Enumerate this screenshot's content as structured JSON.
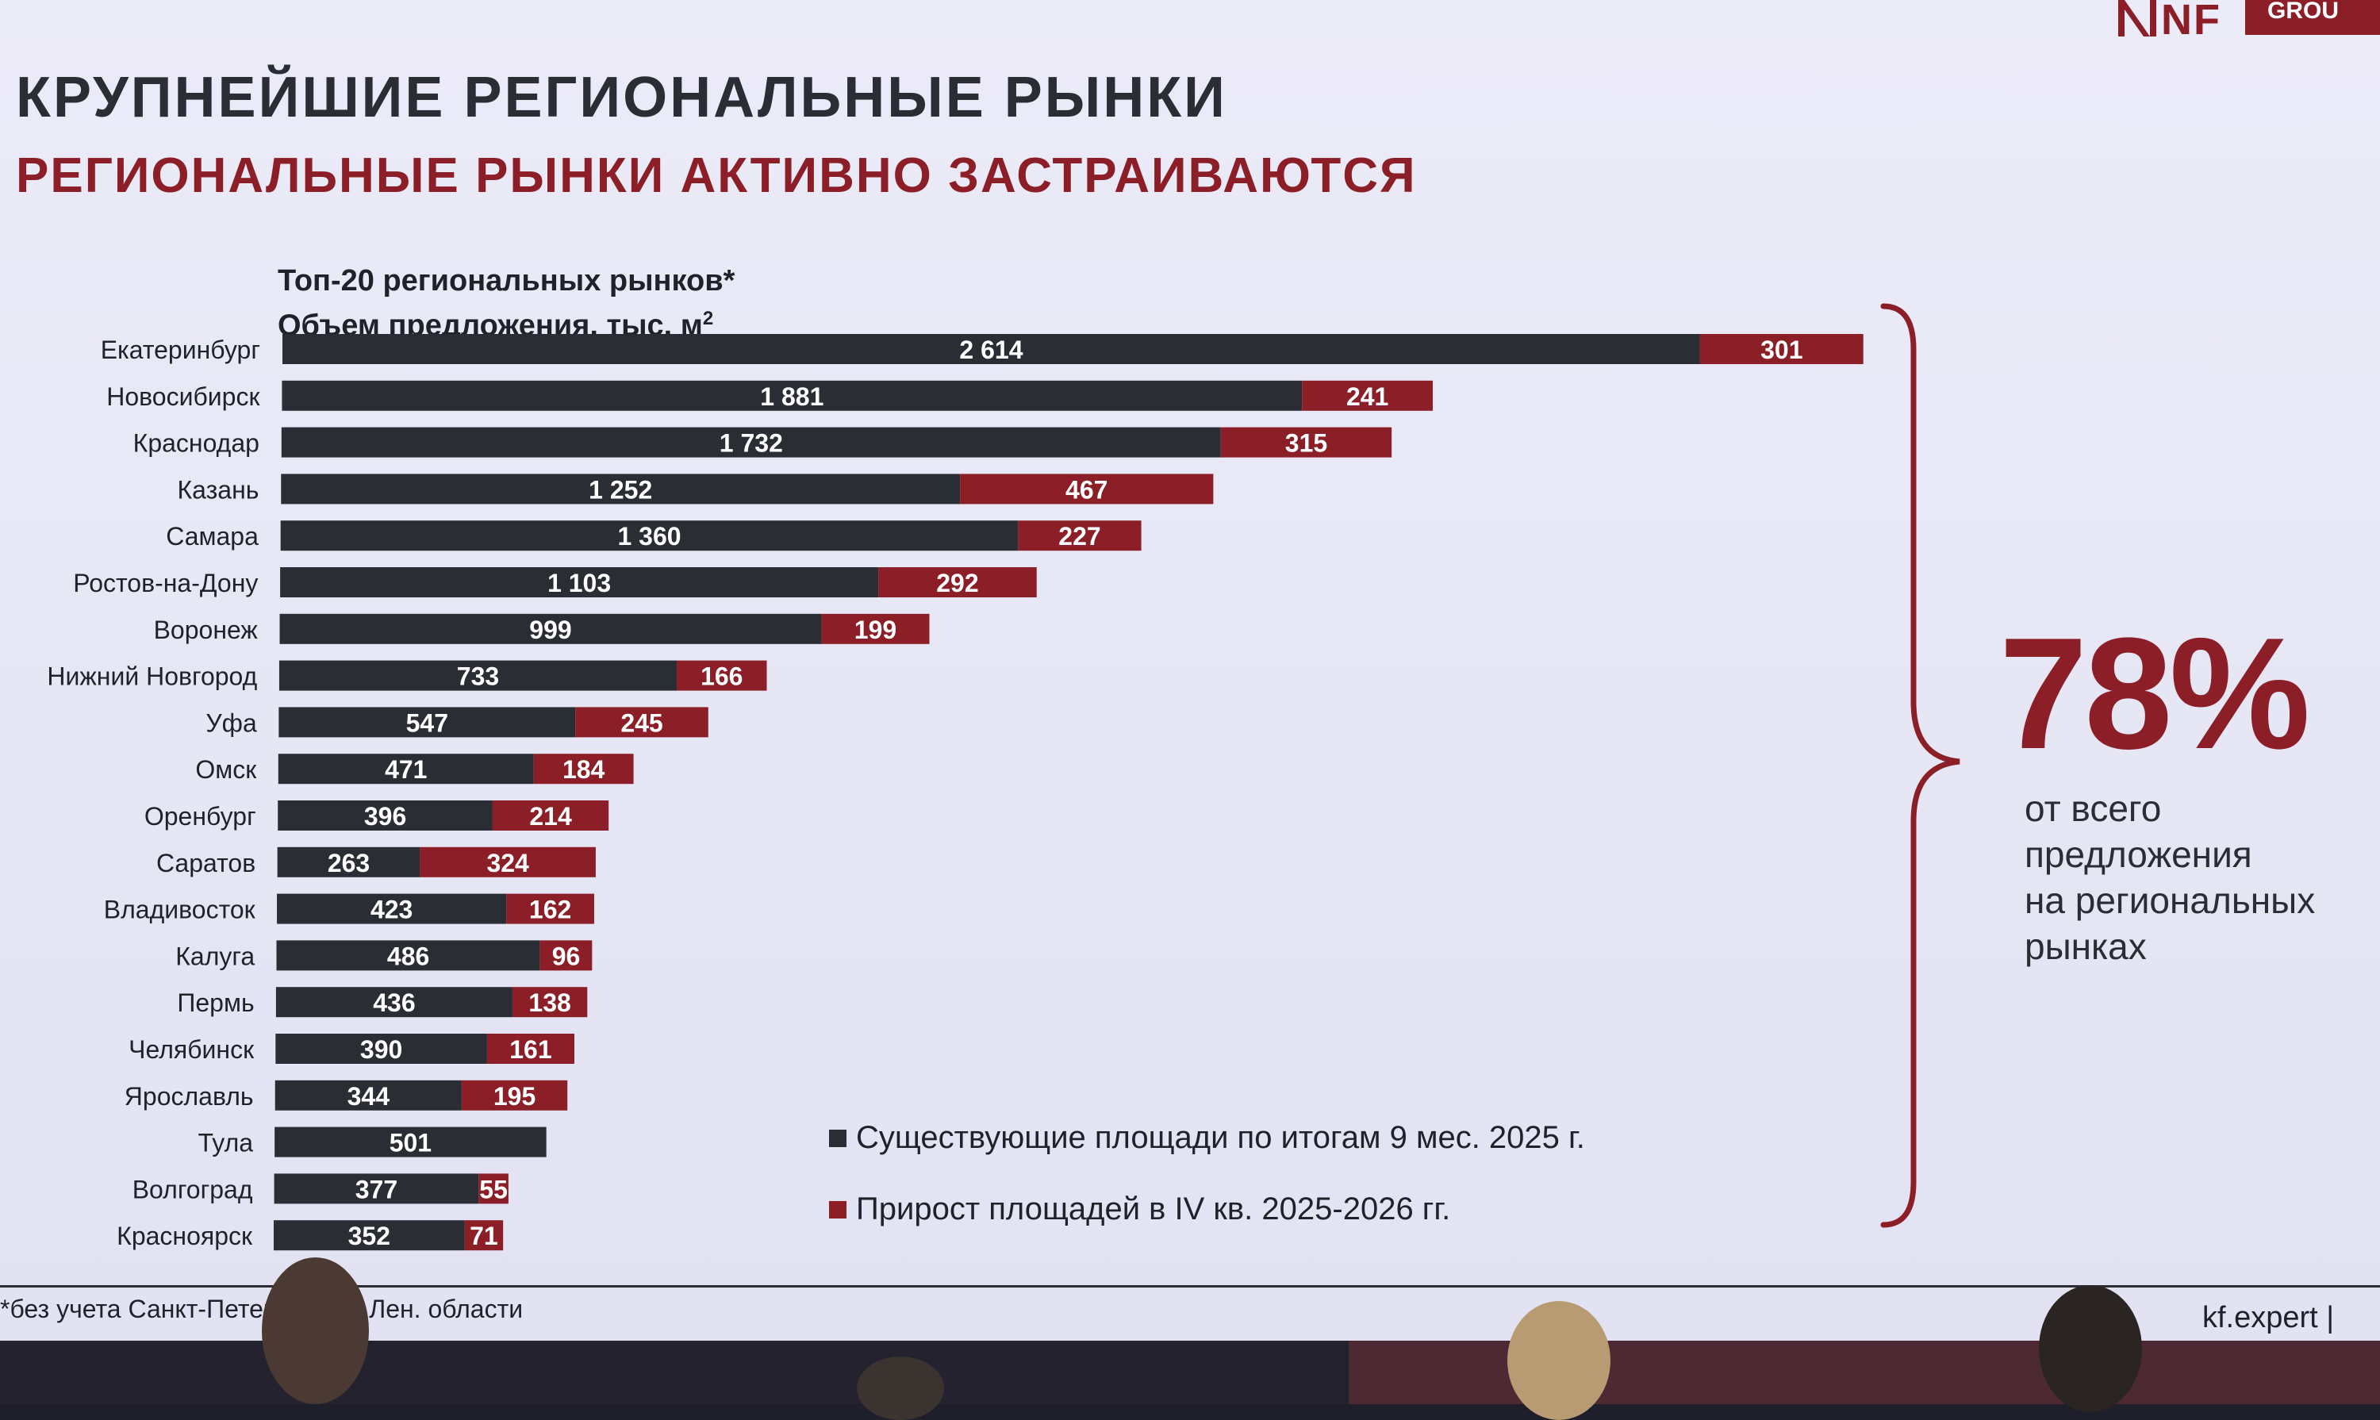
{
  "header": {
    "title": "КРУПНЕЙШИЕ РЕГИОНАЛЬНЫЕ РЫНКИ",
    "subtitle": "РЕГИОНАЛЬНЫЕ РЫНКИ АКТИВНО ЗАСТРАИВАЮТСЯ",
    "logo_letters": "NF",
    "logo_badge": "GROU"
  },
  "chart_data": {
    "type": "bar",
    "orientation": "horizontal",
    "stacked": true,
    "title_line1": "Топ-20 региональных рынков*",
    "title_line2": "Объем предложения, тыс. м",
    "title_sup": "2",
    "categories": [
      "Екатеринбург",
      "Новосибирск",
      "Краснодар",
      "Казань",
      "Самара",
      "Ростов-на-Дону",
      "Воронеж",
      "Нижний Новгород",
      "Уфа",
      "Омск",
      "Оренбург",
      "Саратов",
      "Владивосток",
      "Калуга",
      "Пермь",
      "Челябинск",
      "Ярославль",
      "Тула",
      "Волгоград",
      "Красноярск"
    ],
    "series": [
      {
        "name": "Существующие площади по итогам 9 мес. 2025 г.",
        "color": "#2b2d34",
        "values": [
          2614,
          1881,
          1732,
          1252,
          1360,
          1103,
          999,
          733,
          547,
          471,
          396,
          263,
          423,
          486,
          436,
          390,
          344,
          501,
          377,
          352
        ],
        "labels": [
          "2 614",
          "1 881",
          "1 732",
          "1 252",
          "1 360",
          "1 103",
          "999",
          "733",
          "547",
          "471",
          "396",
          "263",
          "423",
          "486",
          "436",
          "390",
          "344",
          "501",
          "377",
          "352"
        ]
      },
      {
        "name": "Прирост площадей в IV кв. 2025-2026 гг.",
        "color": "#8b1e26",
        "values": [
          301,
          241,
          315,
          467,
          227,
          292,
          199,
          166,
          245,
          184,
          214,
          324,
          162,
          96,
          138,
          161,
          195,
          0,
          55,
          71
        ],
        "labels": [
          "301",
          "241",
          "315",
          "467",
          "227",
          "292",
          "199",
          "166",
          "245",
          "184",
          "214",
          "324",
          "162",
          "96",
          "138",
          "161",
          "195",
          "",
          "55",
          "71"
        ]
      }
    ],
    "legend_position": "bottom-right",
    "grid": false
  },
  "callout": {
    "value": "78%",
    "caption_lines": [
      "от всего",
      "предложения",
      "на региональных",
      "рынках"
    ]
  },
  "footer": {
    "footnote": "*без учета Санкт-Петербурга и Лен. области",
    "source": "kf.expert  |"
  },
  "colors": {
    "existing": "#2b2d34",
    "growth": "#8b1e26",
    "accent": "#8b1e26"
  }
}
